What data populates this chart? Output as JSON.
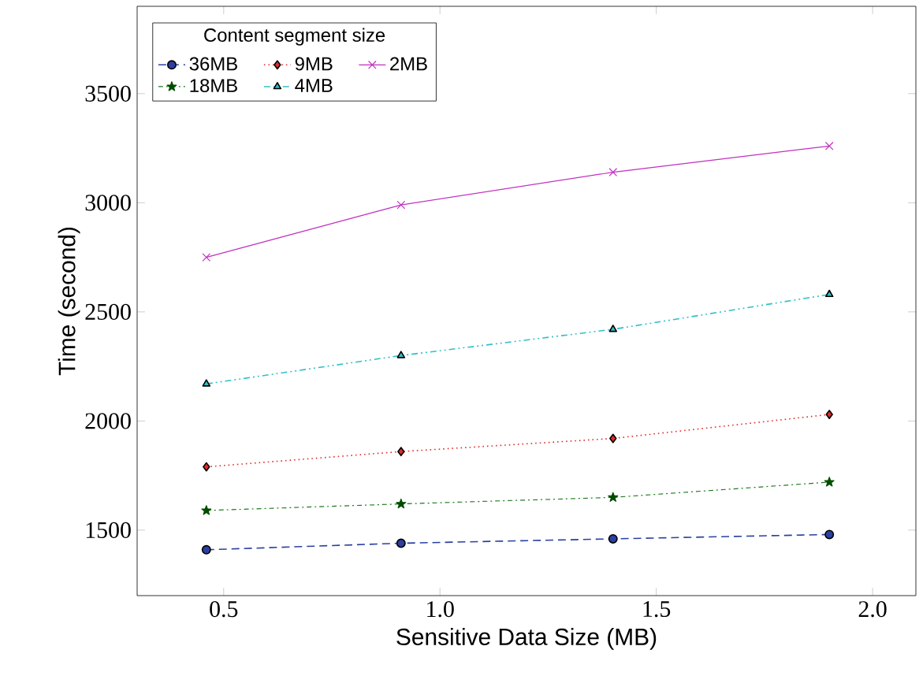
{
  "chart_data": {
    "type": "line",
    "xlabel": "Sensitive Data Size (MB)",
    "ylabel": "Time (second)",
    "legend_title": "Content segment size",
    "x": [
      0.46,
      0.91,
      1.4,
      1.9
    ],
    "series": [
      {
        "name": "36MB",
        "color": "#2b40a0",
        "marker": "circle",
        "line_style": "dashed",
        "values": [
          1410,
          1440,
          1460,
          1480
        ]
      },
      {
        "name": "18MB",
        "color": "#1f7a1f",
        "marker": "star",
        "line_style": "dashdot",
        "values": [
          1590,
          1620,
          1650,
          1720
        ]
      },
      {
        "name": "9MB",
        "color": "#e02a2a",
        "marker": "diamond",
        "line_style": "dotted",
        "values": [
          1790,
          1860,
          1920,
          2030
        ]
      },
      {
        "name": "4MB",
        "color": "#30c0c8",
        "marker": "triangle",
        "line_style": "dashdotdot",
        "values": [
          2170,
          2300,
          2420,
          2580
        ]
      },
      {
        "name": "2MB",
        "color": "#c030c0",
        "marker": "cross",
        "line_style": "solid",
        "values": [
          2750,
          2990,
          3140,
          3260
        ]
      }
    ],
    "xlim": [
      0.3,
      2.1
    ],
    "ylim": [
      1200,
      3900
    ],
    "xticks": [
      0.5,
      {
        "value": 1,
        "label": "1.0"
      },
      1.5,
      {
        "value": 2,
        "label": "2.0"
      }
    ],
    "yticks": [
      1500,
      2000,
      2500,
      3000,
      3500
    ],
    "grid": false,
    "legend": "top left"
  }
}
